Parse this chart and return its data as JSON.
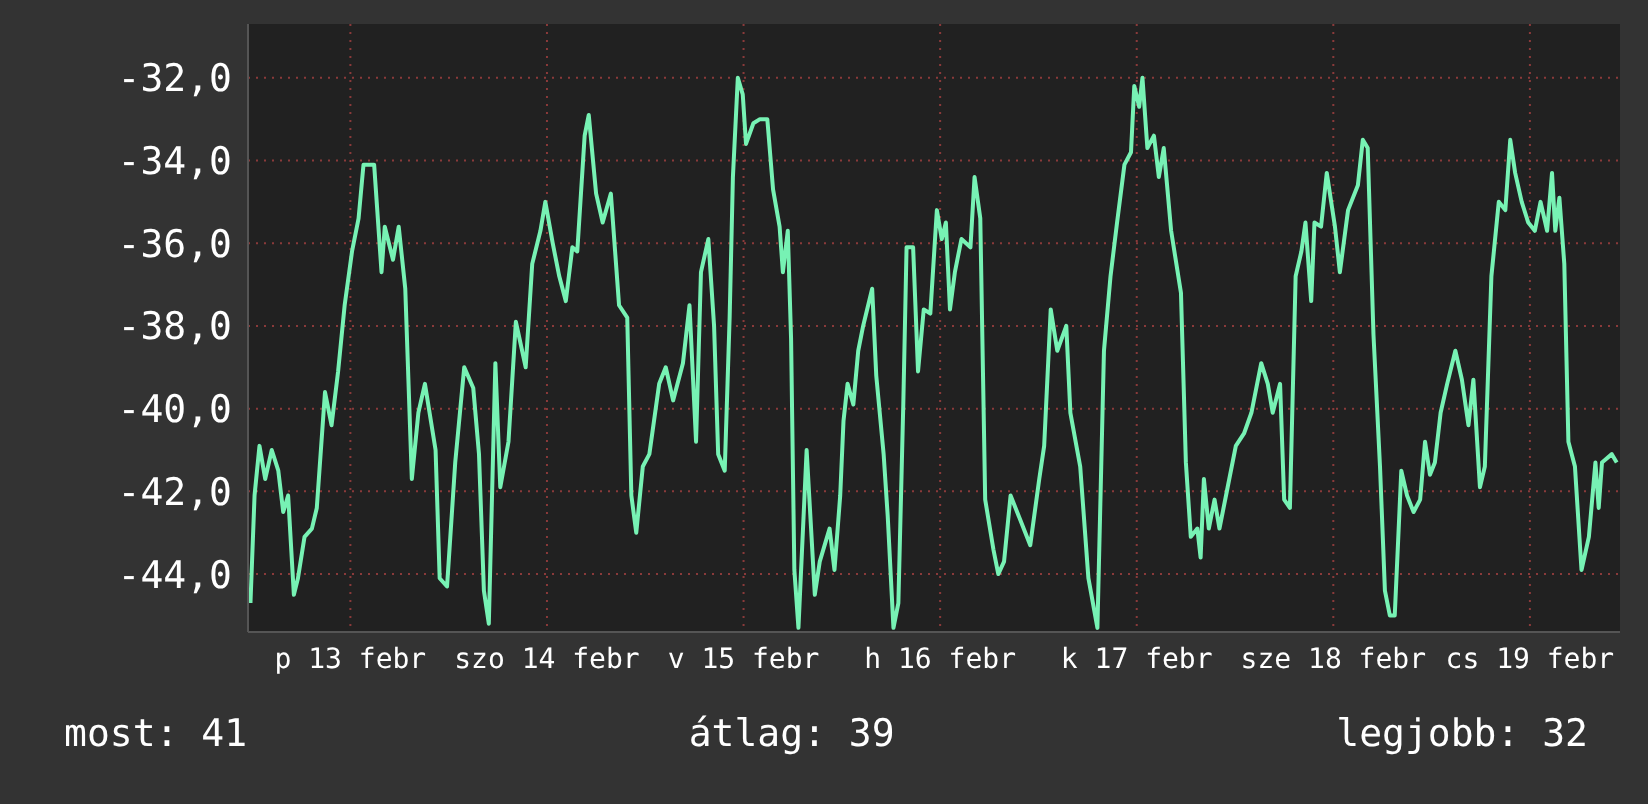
{
  "chart_data": {
    "type": "line",
    "x": [
      "--02-12T11:48",
      "--02-12T12:18",
      "--02-12T12:54",
      "--02-12T13:36",
      "--02-12T14:24",
      "--02-12T15:12",
      "--02-12T15:48",
      "--02-12T16:24",
      "--02-12T17:06",
      "--02-12T17:36",
      "--02-12T18:24",
      "--02-12T19:18",
      "--02-12T19:54",
      "--02-12T20:54",
      "--02-12T21:42",
      "--02-12T22:30",
      "--02-12T23:18",
      "--02-13T00:12",
      "--02-13T01:00",
      "--02-13T01:36",
      "--02-13T02:54",
      "--02-13T03:48",
      "--02-13T04:12",
      "--02-13T05:12",
      "--02-13T05:54",
      "--02-13T06:42",
      "--02-13T07:30",
      "--02-13T08:18",
      "--02-13T09:06",
      "--02-13T10:24",
      "--02-13T10:54",
      "--02-13T11:48",
      "--02-13T12:48",
      "--02-13T13:54",
      "--02-13T15:00",
      "--02-13T15:42",
      "--02-13T16:18",
      "--02-13T16:54",
      "--02-13T17:42",
      "--02-13T18:18",
      "--02-13T19:18",
      "--02-13T20:12",
      "--02-13T21:24",
      "--02-13T22:12",
      "--02-13T23:12",
      "--02-13T23:48",
      "--02-14T00:42",
      "--02-14T01:30",
      "--02-14T02:18",
      "--02-14T03:06",
      "--02-14T03:42",
      "--02-14T04:36",
      "--02-14T05:06",
      "--02-14T06:00",
      "--02-14T06:48",
      "--02-14T07:48",
      "--02-14T08:48",
      "--02-14T09:48",
      "--02-14T10:18",
      "--02-14T10:54",
      "--02-14T11:42",
      "--02-14T12:30",
      "--02-14T13:42",
      "--02-14T14:30",
      "--02-14T15:24",
      "--02-14T16:36",
      "--02-14T17:24",
      "--02-14T18:12",
      "--02-14T18:48",
      "--02-14T19:42",
      "--02-14T20:24",
      "--02-14T20:54",
      "--02-14T21:42",
      "--02-14T22:18",
      "--02-14T22:42",
      "--02-14T23:18",
      "--02-14T23:54",
      "--02-15T00:18",
      "--02-15T01:12",
      "--02-15T02:00",
      "--02-15T02:54",
      "--02-15T03:36",
      "--02-15T04:24",
      "--02-15T04:48",
      "--02-15T05:24",
      "--02-15T05:48",
      "--02-15T06:12",
      "--02-15T06:42",
      "--02-15T07:42",
      "--02-15T08:42",
      "--02-15T09:18",
      "--02-15T10:30",
      "--02-15T11:06",
      "--02-15T11:48",
      "--02-15T12:12",
      "--02-15T12:42",
      "--02-15T13:24",
      "--02-15T14:00",
      "--02-15T14:36",
      "--02-15T15:42",
      "--02-15T16:12",
      "--02-15T17:06",
      "--02-15T17:36",
      "--02-15T18:18",
      "--02-15T18:54",
      "--02-15T19:30",
      "--02-15T19:54",
      "--02-15T20:42",
      "--02-15T21:18",
      "--02-15T22:00",
      "--02-15T22:48",
      "--02-15T23:36",
      "--02-16T00:12",
      "--02-16T00:42",
      "--02-16T01:12",
      "--02-16T01:48",
      "--02-16T02:36",
      "--02-16T03:42",
      "--02-16T04:12",
      "--02-16T04:54",
      "--02-16T05:30",
      "--02-16T06:30",
      "--02-16T07:06",
      "--02-16T07:48",
      "--02-16T08:36",
      "--02-16T09:48",
      "--02-16T11:00",
      "--02-16T12:06",
      "--02-16T12:42",
      "--02-16T13:30",
      "--02-16T14:18",
      "--02-16T15:24",
      "--02-16T15:54",
      "--02-16T17:06",
      "--02-16T18:06",
      "--02-16T19:12",
      "--02-16T20:00",
      "--02-16T20:48",
      "--02-16T21:36",
      "--02-16T22:30",
      "--02-16T23:18",
      "--02-16T23:42",
      "--02-17T00:18",
      "--02-17T00:42",
      "--02-17T01:18",
      "--02-17T02:06",
      "--02-17T02:42",
      "--02-17T03:18",
      "--02-17T04:12",
      "--02-17T05:24",
      "--02-17T06:00",
      "--02-17T06:36",
      "--02-17T07:24",
      "--02-17T07:48",
      "--02-17T08:12",
      "--02-17T08:48",
      "--02-17T09:30",
      "--02-17T10:06",
      "--02-17T11:06",
      "--02-17T12:06",
      "--02-17T13:06",
      "--02-17T14:00",
      "--02-17T15:12",
      "--02-17T16:00",
      "--02-17T16:36",
      "--02-17T17:30",
      "--02-17T18:00",
      "--02-17T18:42",
      "--02-17T19:24",
      "--02-17T20:06",
      "--02-17T20:36",
      "--02-17T21:18",
      "--02-17T21:42",
      "--02-17T22:30",
      "--02-17T23:12",
      "--02-18T00:12",
      "--02-18T00:48",
      "--02-18T01:48",
      "--02-18T03:00",
      "--02-18T03:36",
      "--02-18T04:12",
      "--02-18T04:54",
      "--02-18T05:42",
      "--02-18T06:18",
      "--02-18T06:54",
      "--02-18T07:30",
      "--02-18T08:18",
      "--02-18T09:00",
      "--02-18T09:48",
      "--02-18T10:36",
      "--02-18T11:12",
      "--02-18T11:48",
      "--02-18T12:24",
      "--02-18T13:06",
      "--02-18T13:54",
      "--02-18T14:54",
      "--02-18T15:42",
      "--02-18T16:30",
      "--02-18T17:06",
      "--02-18T17:54",
      "--02-18T18:30",
      "--02-18T19:18",
      "--02-18T20:12",
      "--02-18T21:00",
      "--02-18T21:36",
      "--02-18T22:12",
      "--02-18T23:00",
      "--02-18T23:48",
      "--02-19T00:36",
      "--02-19T01:18",
      "--02-19T02:06",
      "--02-19T02:42",
      "--02-19T03:06",
      "--02-19T03:36",
      "--02-19T04:12",
      "--02-19T04:42",
      "--02-19T05:30",
      "--02-19T06:18",
      "--02-19T07:12",
      "--02-19T08:00",
      "--02-19T08:24",
      "--02-19T08:48",
      "--02-19T10:00",
      "--02-19T10:36"
    ],
    "series": [
      {
        "color": "#77f2b4",
        "values": [
          -44.7,
          -42.1,
          -40.9,
          -41.7,
          -41.0,
          -41.5,
          -42.5,
          -42.1,
          -44.5,
          -44.1,
          -43.1,
          -42.9,
          -42.4,
          -39.6,
          -40.4,
          -39.1,
          -37.5,
          -36.2,
          -35.4,
          -34.1,
          -34.1,
          -36.7,
          -35.6,
          -36.4,
          -35.6,
          -37.1,
          -41.7,
          -40.1,
          -39.4,
          -41.0,
          -44.1,
          -44.3,
          -41.3,
          -39.0,
          -39.5,
          -41.1,
          -44.4,
          -45.2,
          -38.9,
          -41.9,
          -40.8,
          -37.9,
          -39.0,
          -36.5,
          -35.7,
          -35.0,
          -36.0,
          -36.8,
          -37.4,
          -36.1,
          -36.2,
          -33.4,
          -32.9,
          -34.8,
          -35.5,
          -34.8,
          -37.5,
          -37.8,
          -42.1,
          -43.0,
          -41.4,
          -41.1,
          -39.4,
          -39.0,
          -39.8,
          -38.9,
          -37.5,
          -40.8,
          -36.7,
          -35.9,
          -38.0,
          -41.1,
          -41.5,
          -37.8,
          -34.4,
          -32.0,
          -32.4,
          -33.6,
          -33.1,
          -33.0,
          -33.0,
          -34.7,
          -35.6,
          -36.7,
          -35.7,
          -38.3,
          -43.9,
          -45.3,
          -41.0,
          -44.5,
          -43.7,
          -42.9,
          -43.9,
          -42.1,
          -40.3,
          -39.4,
          -39.9,
          -38.6,
          -38.0,
          -37.1,
          -39.2,
          -41.1,
          -42.6,
          -45.3,
          -44.7,
          -39.9,
          -36.1,
          -36.1,
          -39.1,
          -37.6,
          -37.7,
          -35.2,
          -35.9,
          -35.5,
          -37.6,
          -36.7,
          -35.9,
          -36.1,
          -34.4,
          -35.4,
          -42.2,
          -43.4,
          -44.0,
          -43.7,
          -42.1,
          -42.7,
          -43.3,
          -41.7,
          -40.9,
          -37.6,
          -38.6,
          -38.0,
          -40.1,
          -41.4,
          -44.1,
          -45.3,
          -38.6,
          -36.8,
          -35.5,
          -34.1,
          -33.8,
          -32.2,
          -32.7,
          -32.0,
          -33.7,
          -33.4,
          -34.4,
          -33.7,
          -35.7,
          -37.2,
          -41.3,
          -43.1,
          -42.9,
          -43.6,
          -41.7,
          -42.9,
          -42.2,
          -42.9,
          -41.9,
          -40.9,
          -40.6,
          -40.1,
          -38.9,
          -39.4,
          -40.1,
          -39.4,
          -42.2,
          -42.4,
          -36.8,
          -36.2,
          -35.5,
          -37.4,
          -35.5,
          -35.6,
          -34.3,
          -35.6,
          -36.7,
          -35.2,
          -34.6,
          -33.5,
          -33.7,
          -38.2,
          -41.4,
          -44.4,
          -45.0,
          -45.0,
          -41.5,
          -42.1,
          -42.5,
          -42.2,
          -40.8,
          -41.6,
          -41.3,
          -40.1,
          -39.4,
          -38.6,
          -39.3,
          -40.4,
          -39.3,
          -41.9,
          -41.4,
          -36.8,
          -35.0,
          -35.2,
          -33.5,
          -34.3,
          -35.0,
          -35.5,
          -35.7,
          -35.0,
          -35.7,
          -34.3,
          -35.7,
          -34.9,
          -36.5,
          -40.8,
          -41.4,
          -43.9,
          -43.1,
          -41.3,
          -42.4,
          -41.3,
          -41.1,
          -41.3
        ]
      }
    ],
    "xlim": [
      "--02-12T11:30",
      "--02-19T11:00"
    ],
    "xticks": [
      {
        "value": "--02-13",
        "label": "p 13 febr"
      },
      {
        "value": "--02-14",
        "label": "szo 14 febr"
      },
      {
        "value": "--02-15",
        "label": "v 15 febr"
      },
      {
        "value": "--02-16",
        "label": "h 16 febr"
      },
      {
        "value": "--02-17",
        "label": "k 17 febr"
      },
      {
        "value": "--02-18",
        "label": "sze 18 febr"
      },
      {
        "value": "--02-19",
        "label": "cs 19 febr"
      }
    ],
    "ylim": [
      -45.4,
      -30.7
    ],
    "yticks": [
      {
        "value": -44,
        "label": "-44,0"
      },
      {
        "value": -42,
        "label": "-42,0"
      },
      {
        "value": -40,
        "label": "-40,0"
      },
      {
        "value": -38,
        "label": "-38,0"
      },
      {
        "value": -36,
        "label": "-36,0"
      },
      {
        "value": -34,
        "label": "-34,0"
      },
      {
        "value": -32,
        "label": "-32,0"
      }
    ],
    "grid": true,
    "annotations": [
      "most: 41",
      "átlag: 39",
      "legjobb: 32"
    ]
  }
}
